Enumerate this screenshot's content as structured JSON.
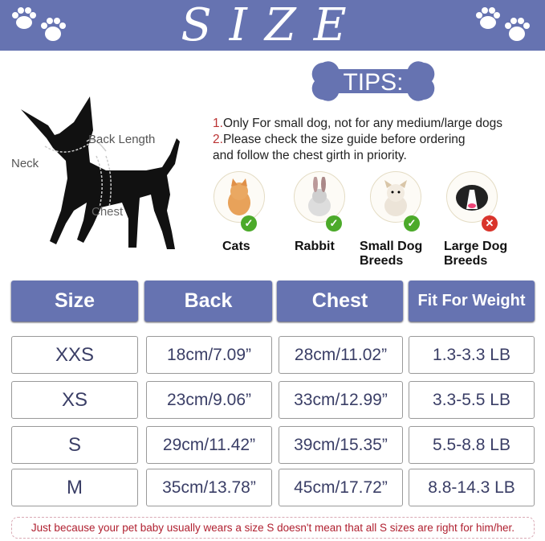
{
  "banner": {
    "title": "SIZE",
    "color": "#6673b1"
  },
  "tips": {
    "label": "TIPS:",
    "items": [
      {
        "num": "1.",
        "text": "Only For small dog, not for any medium/large dogs"
      },
      {
        "num": "2.",
        "text": "Please check the size guide before ordering"
      }
    ],
    "continuation": "and follow the chest girth in priority."
  },
  "diagram": {
    "neck": "Neck",
    "back_length": "Back Length",
    "chest": "Chest"
  },
  "animals": [
    {
      "name": "Cats",
      "line2": "",
      "suitable": true,
      "icon": "cat-icon"
    },
    {
      "name": "Rabbit",
      "line2": "",
      "suitable": true,
      "icon": "rabbit-icon"
    },
    {
      "name": "Small Dog",
      "line2": "Breeds",
      "suitable": true,
      "icon": "small-dog-icon"
    },
    {
      "name": "Large Dog",
      "line2": "Breeds",
      "suitable": false,
      "icon": "large-dog-icon"
    }
  ],
  "table": {
    "headers": [
      "Size",
      "Back",
      "Chest",
      "Fit For Weight"
    ],
    "rows": [
      [
        "XXS",
        "18cm/7.09”",
        "28cm/11.02”",
        "1.3-3.3 LB"
      ],
      [
        "XS",
        "23cm/9.06”",
        "33cm/12.99”",
        "3.3-5.5 LB"
      ],
      [
        "S",
        "29cm/11.42”",
        "39cm/15.35”",
        "5.5-8.8 LB"
      ],
      [
        "M",
        "35cm/13.78”",
        "45cm/17.72”",
        "8.8-14.3 LB"
      ]
    ]
  },
  "note": "Just because your pet baby usually wears a size S doesn't mean that all S sizes are right for him/her."
}
